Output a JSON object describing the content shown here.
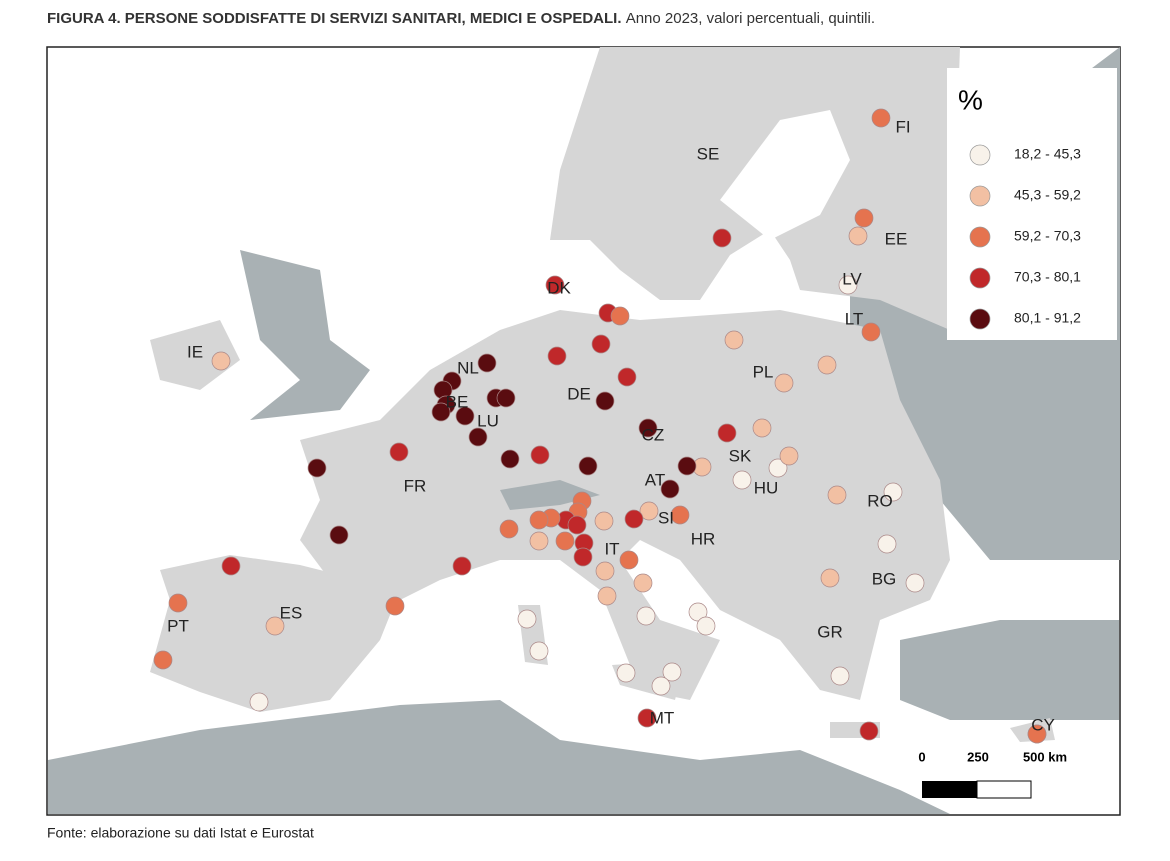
{
  "title": "FIGURA 4. PERSONE SODDISFATTE DI SERVIZI SANITARI, MEDICI E OSPEDALI.",
  "subtitle": "Anno 2023, valori percentuali, quintili.",
  "legend": {
    "title": "%",
    "classes": [
      {
        "label": "18,2 - 45,3",
        "color": "#f8f2ea"
      },
      {
        "label": "45,3 - 59,2",
        "color": "#f2c0a3"
      },
      {
        "label": "59,2 - 70,3",
        "color": "#e5734f"
      },
      {
        "label": "70,3 - 80,1",
        "color": "#c0282a"
      },
      {
        "label": "80,1 - 91,2",
        "color": "#5a0c10"
      }
    ]
  },
  "country_labels": [
    "SE",
    "FI",
    "EE",
    "LV",
    "LT",
    "DK",
    "IE",
    "NL",
    "BE",
    "LU",
    "DE",
    "PL",
    "CZ",
    "SK",
    "HU",
    "AT",
    "SI",
    "HR",
    "RO",
    "BG",
    "GR",
    "FR",
    "ES",
    "PT",
    "IT",
    "MT",
    "CY"
  ],
  "points": [
    2,
    3,
    2,
    1,
    0,
    2,
    3,
    3,
    2,
    1,
    1,
    1,
    1,
    1,
    3,
    3,
    3,
    3,
    4,
    3,
    4,
    4,
    4,
    4,
    4,
    4,
    4,
    4,
    4,
    4,
    4,
    4,
    3,
    4,
    4,
    3,
    2,
    1,
    4,
    4,
    0,
    1,
    0,
    1,
    3,
    2,
    1,
    0,
    0,
    0,
    1,
    0,
    2,
    2,
    3,
    2,
    2,
    2,
    1,
    2,
    3,
    3,
    3,
    1,
    2,
    1,
    1,
    1,
    0,
    0,
    0,
    0,
    0,
    0,
    0,
    0,
    3,
    3,
    3,
    2,
    1,
    2,
    0,
    0,
    2
  ],
  "scale_bar": [
    "0",
    "250",
    "500 km"
  ],
  "source": "Fonte: elaborazione su dati Istat e Eurostat"
}
